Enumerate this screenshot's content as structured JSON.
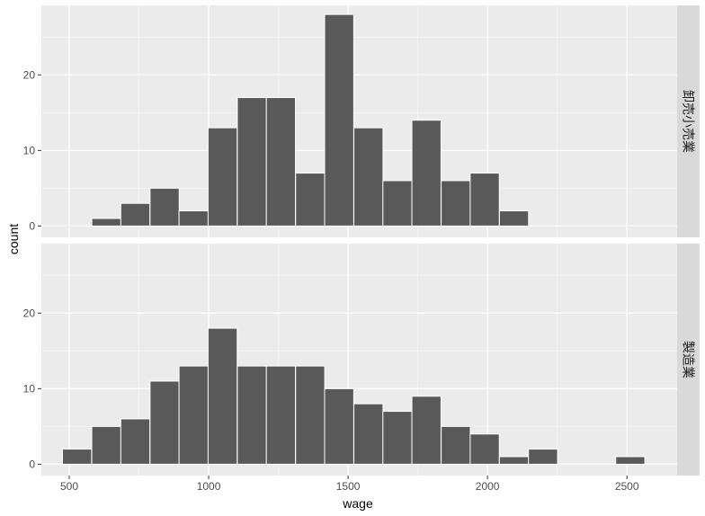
{
  "chart_data": {
    "type": "bar",
    "xlabel": "wage",
    "ylabel": "count",
    "xlim": [
      400,
      2680
    ],
    "ylim": [
      -1.5,
      29.2
    ],
    "xticks": [
      500,
      1000,
      1500,
      2000,
      2500
    ],
    "yticks": [
      0,
      10,
      20
    ],
    "grid": true,
    "bin_width": 104.4,
    "bar_fill": "#595959",
    "bar_outline": "#ffffff",
    "panel_bg": "#ebebeb",
    "strip_bg": "#d9d9d9",
    "panels": [
      {
        "label": "卸売小売業",
        "bins": [
          {
            "x": 633,
            "count": 1
          },
          {
            "x": 737,
            "count": 3
          },
          {
            "x": 842,
            "count": 5
          },
          {
            "x": 946,
            "count": 2
          },
          {
            "x": 1050,
            "count": 13
          },
          {
            "x": 1155,
            "count": 17
          },
          {
            "x": 1259,
            "count": 17
          },
          {
            "x": 1364,
            "count": 7
          },
          {
            "x": 1468,
            "count": 28
          },
          {
            "x": 1573,
            "count": 13
          },
          {
            "x": 1677,
            "count": 6
          },
          {
            "x": 1781,
            "count": 14
          },
          {
            "x": 1886,
            "count": 6
          },
          {
            "x": 1990,
            "count": 7
          },
          {
            "x": 2095,
            "count": 2
          }
        ]
      },
      {
        "label": "製造業",
        "bins": [
          {
            "x": 528,
            "count": 2
          },
          {
            "x": 633,
            "count": 5
          },
          {
            "x": 737,
            "count": 6
          },
          {
            "x": 842,
            "count": 11
          },
          {
            "x": 946,
            "count": 13
          },
          {
            "x": 1050,
            "count": 18
          },
          {
            "x": 1155,
            "count": 13
          },
          {
            "x": 1259,
            "count": 13
          },
          {
            "x": 1364,
            "count": 13
          },
          {
            "x": 1468,
            "count": 10
          },
          {
            "x": 1573,
            "count": 8
          },
          {
            "x": 1677,
            "count": 7
          },
          {
            "x": 1781,
            "count": 9
          },
          {
            "x": 1886,
            "count": 5
          },
          {
            "x": 1990,
            "count": 4
          },
          {
            "x": 2095,
            "count": 1
          },
          {
            "x": 2199,
            "count": 2
          },
          {
            "x": 2512,
            "count": 1
          }
        ]
      }
    ]
  }
}
